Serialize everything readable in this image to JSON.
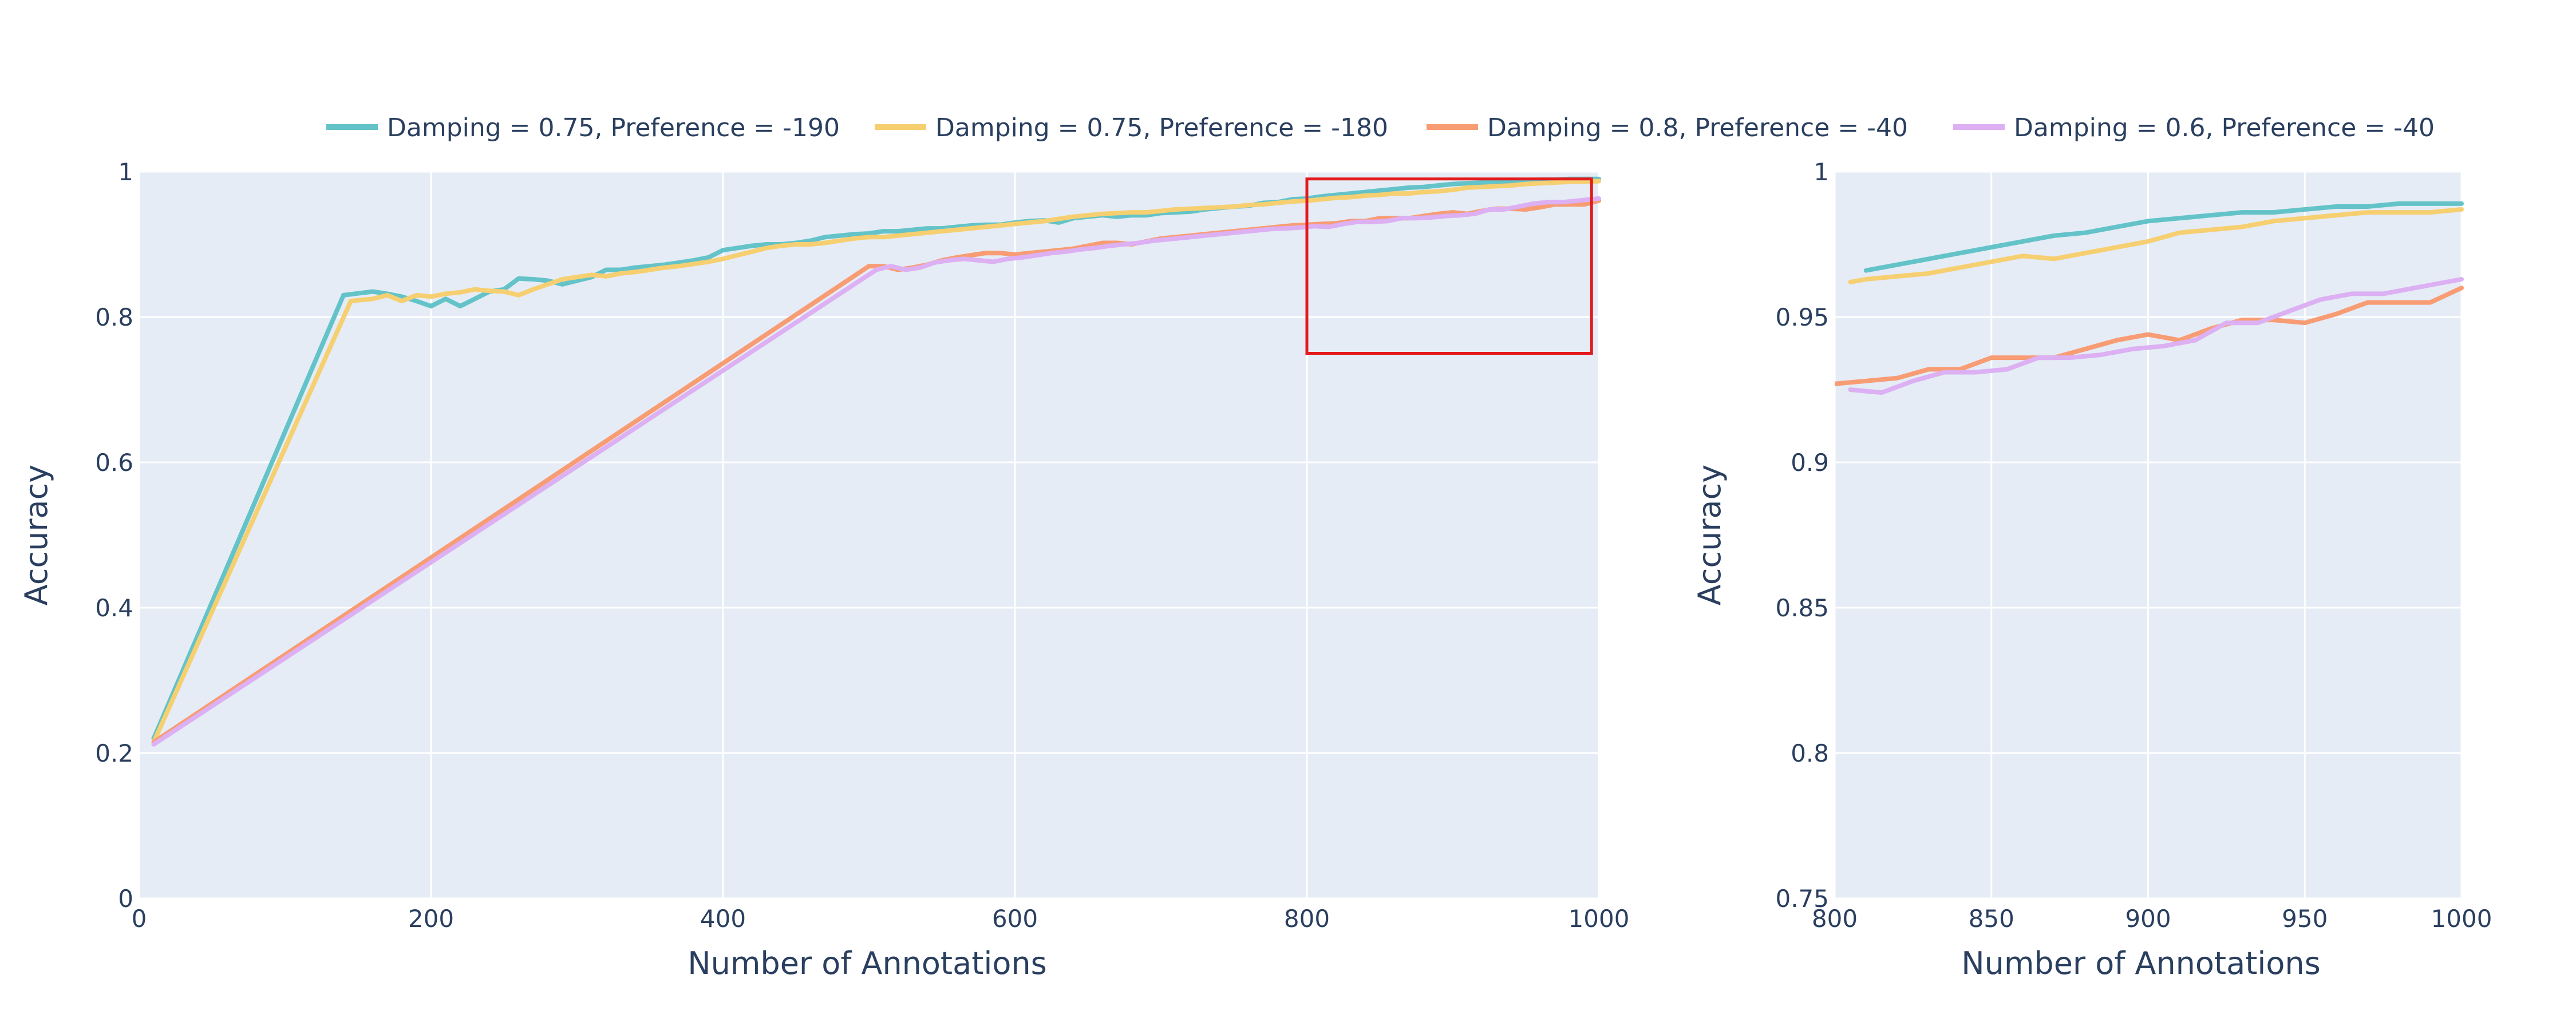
{
  "legend": [
    {
      "name": "Damping = 0.75, Preference = -190",
      "color": "#63c3c8"
    },
    {
      "name": "Damping = 0.75, Preference = -180",
      "color": "#f6cf71"
    },
    {
      "name": "Damping = 0.8, Preference = -40",
      "color": "#f89c74"
    },
    {
      "name": "Damping = 0.6, Preference = -40",
      "color": "#dcb0f2"
    }
  ],
  "colors": {
    "plot_background": "#e5ecf6",
    "grid": "#ffffff",
    "text": "#2a3f5f",
    "zoom_box": "#e31a1c"
  },
  "chart_data": [
    {
      "type": "line",
      "xlabel": "Number of Annotations",
      "ylabel": "Accuracy",
      "xlim": [
        0,
        1000
      ],
      "ylim": [
        0,
        1
      ],
      "xticks": [
        0,
        200,
        400,
        600,
        800,
        1000
      ],
      "yticks": [
        0,
        0.2,
        0.4,
        0.6,
        0.8,
        1
      ],
      "xtick_labels": [
        "0",
        "200",
        "400",
        "600",
        "800",
        "1000"
      ],
      "ytick_labels": [
        "0",
        "0.2",
        "0.4",
        "0.6",
        "0.8",
        "1"
      ],
      "grid": true,
      "zoom_box": {
        "x": [
          800,
          995
        ],
        "y": [
          0.75,
          0.99
        ]
      },
      "series": [
        {
          "name": "Damping = 0.75, Preference = -190",
          "x": [
            10,
            140,
            160,
            170,
            180,
            190,
            200,
            210,
            220,
            230,
            240,
            250,
            260,
            270,
            280,
            290,
            300,
            310,
            320,
            330,
            340,
            350,
            360,
            370,
            380,
            390,
            400,
            410,
            420,
            430,
            440,
            450,
            460,
            470,
            480,
            490,
            500,
            510,
            520,
            530,
            540,
            550,
            560,
            570,
            580,
            590,
            600,
            610,
            620,
            630,
            640,
            650,
            660,
            670,
            680,
            690,
            700,
            710,
            720,
            730,
            740,
            750,
            760,
            770,
            780,
            790,
            800,
            810,
            820,
            830,
            840,
            850,
            860,
            870,
            880,
            890,
            900,
            910,
            920,
            930,
            940,
            950,
            960,
            970,
            980,
            990,
            1000
          ],
          "y": [
            0.22,
            0.83,
            0.835,
            0.832,
            0.828,
            0.822,
            0.815,
            0.825,
            0.815,
            0.825,
            0.835,
            0.838,
            0.853,
            0.852,
            0.85,
            0.845,
            0.85,
            0.855,
            0.865,
            0.865,
            0.868,
            0.87,
            0.872,
            0.875,
            0.878,
            0.882,
            0.892,
            0.895,
            0.898,
            0.9,
            0.9,
            0.902,
            0.905,
            0.91,
            0.912,
            0.914,
            0.915,
            0.918,
            0.918,
            0.92,
            0.922,
            0.922,
            0.924,
            0.926,
            0.927,
            0.927,
            0.93,
            0.932,
            0.933,
            0.93,
            0.936,
            0.938,
            0.94,
            0.938,
            0.94,
            0.94,
            0.943,
            0.944,
            0.945,
            0.948,
            0.95,
            0.952,
            0.953,
            0.957,
            0.958,
            0.962,
            0.963,
            0.966,
            0.968,
            0.97,
            0.972,
            0.974,
            0.976,
            0.978,
            0.979,
            0.981,
            0.983,
            0.984,
            0.985,
            0.986,
            0.987,
            0.988,
            0.989,
            0.989,
            0.99,
            0.99,
            0.99
          ]
        },
        {
          "name": "Damping = 0.75, Preference = -180",
          "x": [
            10,
            145,
            160,
            170,
            180,
            190,
            200,
            210,
            220,
            230,
            240,
            250,
            260,
            270,
            280,
            290,
            300,
            310,
            320,
            330,
            340,
            350,
            360,
            370,
            380,
            390,
            400,
            410,
            420,
            430,
            440,
            450,
            460,
            470,
            480,
            490,
            500,
            510,
            520,
            530,
            540,
            550,
            560,
            570,
            580,
            590,
            600,
            610,
            620,
            630,
            640,
            650,
            660,
            670,
            680,
            690,
            700,
            710,
            720,
            730,
            740,
            750,
            760,
            770,
            780,
            790,
            800,
            810,
            820,
            830,
            840,
            850,
            860,
            870,
            880,
            890,
            900,
            910,
            920,
            930,
            940,
            950,
            960,
            970,
            980,
            990,
            1000
          ],
          "y": [
            0.215,
            0.822,
            0.825,
            0.83,
            0.822,
            0.83,
            0.828,
            0.832,
            0.834,
            0.838,
            0.836,
            0.835,
            0.83,
            0.838,
            0.845,
            0.852,
            0.855,
            0.858,
            0.856,
            0.86,
            0.862,
            0.865,
            0.868,
            0.87,
            0.873,
            0.876,
            0.88,
            0.885,
            0.89,
            0.895,
            0.898,
            0.9,
            0.9,
            0.902,
            0.905,
            0.908,
            0.91,
            0.91,
            0.912,
            0.914,
            0.916,
            0.918,
            0.92,
            0.922,
            0.924,
            0.926,
            0.928,
            0.93,
            0.932,
            0.935,
            0.938,
            0.94,
            0.942,
            0.943,
            0.944,
            0.944,
            0.946,
            0.948,
            0.949,
            0.95,
            0.951,
            0.952,
            0.954,
            0.955,
            0.957,
            0.959,
            0.96,
            0.962,
            0.964,
            0.965,
            0.967,
            0.968,
            0.97,
            0.97,
            0.972,
            0.973,
            0.975,
            0.978,
            0.979,
            0.98,
            0.981,
            0.983,
            0.984,
            0.985,
            0.986,
            0.986,
            0.987
          ]
        },
        {
          "name": "Damping = 0.8, Preference = -40",
          "x": [
            10,
            500,
            510,
            520,
            530,
            540,
            550,
            560,
            570,
            580,
            590,
            600,
            610,
            620,
            630,
            640,
            650,
            660,
            670,
            680,
            690,
            700,
            710,
            720,
            730,
            740,
            750,
            760,
            770,
            780,
            790,
            800,
            810,
            820,
            830,
            840,
            850,
            860,
            870,
            880,
            890,
            900,
            910,
            920,
            930,
            940,
            950,
            960,
            970,
            980,
            990,
            1000
          ],
          "y": [
            0.215,
            0.87,
            0.87,
            0.865,
            0.868,
            0.872,
            0.878,
            0.882,
            0.885,
            0.888,
            0.888,
            0.886,
            0.888,
            0.89,
            0.892,
            0.894,
            0.898,
            0.902,
            0.902,
            0.9,
            0.904,
            0.908,
            0.91,
            0.912,
            0.914,
            0.916,
            0.918,
            0.92,
            0.922,
            0.924,
            0.926,
            0.927,
            0.928,
            0.929,
            0.932,
            0.932,
            0.936,
            0.936,
            0.936,
            0.939,
            0.942,
            0.944,
            0.942,
            0.946,
            0.949,
            0.949,
            0.948,
            0.951,
            0.955,
            0.955,
            0.955,
            0.96
          ]
        },
        {
          "name": "Damping = 0.6, Preference = -40",
          "x": [
            10,
            505,
            515,
            525,
            535,
            545,
            555,
            565,
            575,
            585,
            595,
            605,
            615,
            625,
            635,
            645,
            655,
            665,
            675,
            685,
            695,
            705,
            715,
            725,
            735,
            745,
            755,
            765,
            775,
            785,
            795,
            805,
            815,
            825,
            835,
            845,
            855,
            865,
            875,
            885,
            895,
            905,
            915,
            925,
            935,
            945,
            955,
            965,
            975,
            985,
            1000
          ],
          "y": [
            0.212,
            0.865,
            0.87,
            0.865,
            0.868,
            0.875,
            0.878,
            0.88,
            0.878,
            0.876,
            0.88,
            0.882,
            0.885,
            0.888,
            0.89,
            0.893,
            0.895,
            0.898,
            0.9,
            0.902,
            0.905,
            0.907,
            0.909,
            0.911,
            0.913,
            0.915,
            0.917,
            0.919,
            0.921,
            0.922,
            0.923,
            0.925,
            0.924,
            0.928,
            0.931,
            0.931,
            0.932,
            0.936,
            0.936,
            0.937,
            0.939,
            0.94,
            0.942,
            0.948,
            0.948,
            0.952,
            0.956,
            0.958,
            0.958,
            0.96,
            0.963
          ]
        }
      ]
    },
    {
      "type": "line",
      "xlabel": "Number of Annotations",
      "ylabel": "Accuracy",
      "xlim": [
        800,
        1000
      ],
      "ylim": [
        0.75,
        1
      ],
      "xticks": [
        800,
        850,
        900,
        950,
        1000
      ],
      "yticks": [
        0.75,
        0.8,
        0.85,
        0.9,
        0.95,
        1
      ],
      "xtick_labels": [
        "800",
        "850",
        "900",
        "950",
        "1000"
      ],
      "ytick_labels": [
        "0.75",
        "0.8",
        "0.85",
        "0.9",
        "0.95",
        "1"
      ],
      "grid": true,
      "series": [
        {
          "name": "Damping = 0.75, Preference = -190",
          "x": [
            810,
            820,
            830,
            840,
            850,
            860,
            870,
            880,
            890,
            900,
            910,
            920,
            930,
            940,
            950,
            960,
            970,
            980,
            990,
            1000
          ],
          "y": [
            0.966,
            0.968,
            0.97,
            0.972,
            0.974,
            0.976,
            0.978,
            0.979,
            0.981,
            0.983,
            0.984,
            0.985,
            0.986,
            0.986,
            0.987,
            0.988,
            0.988,
            0.989,
            0.989,
            0.989
          ]
        },
        {
          "name": "Damping = 0.75, Preference = -180",
          "x": [
            805,
            810,
            820,
            830,
            840,
            850,
            860,
            870,
            880,
            890,
            900,
            910,
            920,
            930,
            940,
            950,
            960,
            970,
            980,
            990,
            1000
          ],
          "y": [
            0.962,
            0.963,
            0.964,
            0.965,
            0.967,
            0.969,
            0.971,
            0.97,
            0.972,
            0.974,
            0.976,
            0.979,
            0.98,
            0.981,
            0.983,
            0.984,
            0.985,
            0.986,
            0.986,
            0.986,
            0.987
          ]
        },
        {
          "name": "Damping = 0.8, Preference = -40",
          "x": [
            800,
            810,
            820,
            830,
            840,
            850,
            860,
            870,
            880,
            890,
            900,
            910,
            920,
            930,
            940,
            950,
            960,
            970,
            980,
            990,
            1000
          ],
          "y": [
            0.927,
            0.928,
            0.929,
            0.932,
            0.932,
            0.936,
            0.936,
            0.936,
            0.939,
            0.942,
            0.944,
            0.942,
            0.946,
            0.949,
            0.949,
            0.948,
            0.951,
            0.955,
            0.955,
            0.955,
            0.96
          ]
        },
        {
          "name": "Damping = 0.6, Preference = -40",
          "x": [
            805,
            815,
            825,
            835,
            845,
            855,
            865,
            875,
            885,
            895,
            905,
            915,
            925,
            935,
            945,
            955,
            965,
            975,
            985,
            1000
          ],
          "y": [
            0.925,
            0.924,
            0.928,
            0.931,
            0.931,
            0.932,
            0.936,
            0.936,
            0.937,
            0.939,
            0.94,
            0.942,
            0.948,
            0.948,
            0.952,
            0.956,
            0.958,
            0.958,
            0.96,
            0.963
          ]
        }
      ]
    }
  ]
}
